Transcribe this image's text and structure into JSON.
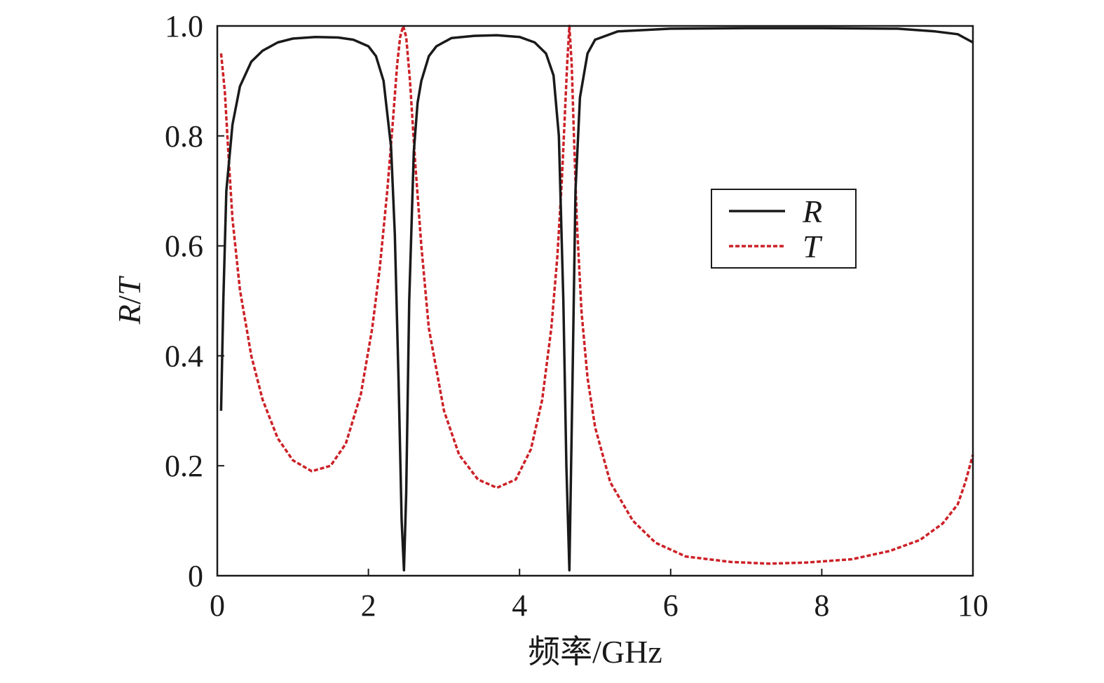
{
  "chart_data": {
    "type": "line",
    "xlabel": "频率/GHz",
    "ylabel": {
      "r": "R",
      "sep": "/",
      "t": "T"
    },
    "xlim": [
      0,
      10
    ],
    "ylim": [
      0,
      1
    ],
    "x_ticks": [
      "0",
      "2",
      "4",
      "6",
      "8",
      "10"
    ],
    "x_tick_values": [
      0,
      2,
      4,
      6,
      8,
      10
    ],
    "y_ticks": [
      "0",
      "0.2",
      "0.4",
      "0.6",
      "0.8",
      "1.0"
    ],
    "y_tick_values": [
      0,
      0.2,
      0.4,
      0.6,
      0.8,
      1.0
    ],
    "grid": false,
    "legend_position": "upper-right",
    "series": [
      {
        "name": "R",
        "color": "#1a1a1a",
        "style": "solid",
        "x": [
          0.05,
          0.08,
          0.12,
          0.2,
          0.3,
          0.45,
          0.6,
          0.8,
          1.0,
          1.3,
          1.6,
          1.8,
          2.0,
          2.1,
          2.2,
          2.3,
          2.35,
          2.4,
          2.44,
          2.47,
          2.5,
          2.54,
          2.6,
          2.65,
          2.7,
          2.8,
          2.9,
          3.1,
          3.4,
          3.7,
          4.0,
          4.2,
          4.35,
          4.45,
          4.52,
          4.58,
          4.62,
          4.66,
          4.7,
          4.74,
          4.8,
          4.9,
          5.0,
          5.3,
          6.0,
          7.0,
          8.0,
          9.0,
          9.5,
          9.8,
          10.0
        ],
        "y": [
          0.3,
          0.5,
          0.7,
          0.82,
          0.89,
          0.935,
          0.955,
          0.97,
          0.977,
          0.98,
          0.979,
          0.975,
          0.963,
          0.945,
          0.9,
          0.78,
          0.62,
          0.35,
          0.1,
          0.01,
          0.15,
          0.5,
          0.77,
          0.86,
          0.9,
          0.945,
          0.963,
          0.978,
          0.982,
          0.983,
          0.98,
          0.97,
          0.95,
          0.91,
          0.8,
          0.5,
          0.2,
          0.01,
          0.35,
          0.7,
          0.87,
          0.95,
          0.975,
          0.99,
          0.995,
          0.996,
          0.996,
          0.995,
          0.99,
          0.985,
          0.97
        ]
      },
      {
        "name": "T",
        "color": "#cc2127",
        "style": "dashed",
        "x": [
          0.05,
          0.1,
          0.15,
          0.2,
          0.3,
          0.45,
          0.6,
          0.8,
          1.0,
          1.25,
          1.5,
          1.7,
          1.9,
          2.05,
          2.15,
          2.25,
          2.32,
          2.38,
          2.42,
          2.46,
          2.5,
          2.55,
          2.62,
          2.7,
          2.8,
          3.0,
          3.2,
          3.45,
          3.7,
          3.95,
          4.15,
          4.3,
          4.42,
          4.5,
          4.56,
          4.6,
          4.63,
          4.66,
          4.69,
          4.72,
          4.76,
          4.82,
          4.9,
          5.0,
          5.2,
          5.5,
          5.8,
          6.2,
          6.8,
          7.3,
          7.8,
          8.4,
          8.9,
          9.3,
          9.6,
          9.8,
          9.9,
          10.0
        ],
        "y": [
          0.95,
          0.88,
          0.76,
          0.65,
          0.52,
          0.4,
          0.32,
          0.25,
          0.21,
          0.19,
          0.2,
          0.24,
          0.33,
          0.45,
          0.56,
          0.7,
          0.82,
          0.93,
          0.98,
          1.0,
          0.98,
          0.9,
          0.75,
          0.6,
          0.45,
          0.3,
          0.22,
          0.175,
          0.16,
          0.175,
          0.23,
          0.32,
          0.45,
          0.58,
          0.72,
          0.84,
          0.93,
          1.0,
          0.93,
          0.8,
          0.64,
          0.48,
          0.36,
          0.27,
          0.17,
          0.1,
          0.06,
          0.035,
          0.025,
          0.022,
          0.024,
          0.03,
          0.045,
          0.065,
          0.095,
          0.13,
          0.17,
          0.22
        ]
      }
    ]
  }
}
